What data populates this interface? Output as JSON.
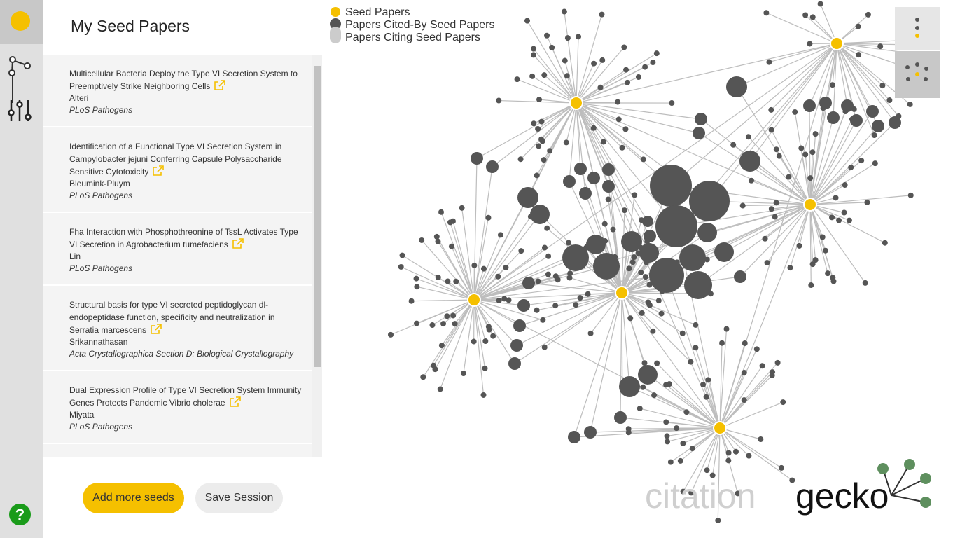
{
  "sidebar": {
    "help": "?"
  },
  "panel": {
    "title": "My Seed Papers",
    "papers": [
      {
        "title": "Multicellular Bacteria Deploy the Type VI Secretion System to Preemptively Strike Neighboring Cells",
        "author": "Alteri",
        "journal": "PLoS Pathogens"
      },
      {
        "title": "Identification of a Functional Type VI Secretion System in Campylobacter jejuni Conferring Capsule Polysaccharide Sensitive Cytotoxicity",
        "author": "Bleumink-Pluym",
        "journal": "PLoS Pathogens"
      },
      {
        "title": "Fha Interaction with Phosphothreonine of TssL Activates Type VI Secretion in Agrobacterium tumefaciens",
        "author": "Lin",
        "journal": "PLoS Pathogens"
      },
      {
        "title": "Structural basis for type VI secreted peptidoglycan dl-endopeptidase function, specificity and neutralization in Serratia marcescens",
        "author": "Srikannathasan",
        "journal": "Acta Crystallographica Section D: Biological Crystallography"
      },
      {
        "title": "Dual Expression Profile of Type VI Secretion System Immunity Genes Protects Pandemic Vibrio cholerae",
        "author": "Miyata",
        "journal": "PLoS Pathogens"
      }
    ],
    "buttons": [
      "Add more seeds",
      "Save Session"
    ]
  },
  "legend": [
    "Seed Papers",
    "Papers Cited-By Seed Papers",
    "Papers Citing Seed Papers"
  ],
  "logo": {
    "left": "citation",
    "right": "gecko"
  }
}
